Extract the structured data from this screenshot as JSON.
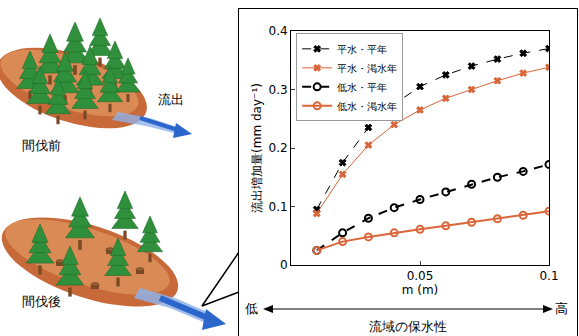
{
  "chart_data": {
    "type": "line",
    "x_label": "m (m)",
    "y_label": "流出増加量(mm day⁻¹)",
    "x": [
      0.01,
      0.02,
      0.03,
      0.04,
      0.05,
      0.06,
      0.07,
      0.08,
      0.09,
      0.1
    ],
    "series": [
      {
        "name": "平水・平年",
        "color": "#000000",
        "marker": "x",
        "line_style": "dash",
        "values": [
          0.095,
          0.175,
          0.235,
          0.275,
          0.305,
          0.325,
          0.34,
          0.352,
          0.362,
          0.37
        ]
      },
      {
        "name": "平水・渇水年",
        "color": "#d9663a",
        "marker": "x",
        "line_style": "solid",
        "values": [
          0.088,
          0.155,
          0.205,
          0.24,
          0.265,
          0.285,
          0.3,
          0.315,
          0.328,
          0.338
        ]
      },
      {
        "name": "低水・平年",
        "color": "#000000",
        "marker": "circle-open",
        "line_style": "dash",
        "values": [
          0.025,
          0.055,
          0.08,
          0.098,
          0.112,
          0.125,
          0.138,
          0.15,
          0.16,
          0.172
        ]
      },
      {
        "name": "低水・渇水年",
        "color": "#d9663a",
        "marker": "circle-open",
        "line_style": "solid",
        "values": [
          0.025,
          0.04,
          0.048,
          0.055,
          0.061,
          0.067,
          0.073,
          0.079,
          0.085,
          0.092
        ]
      }
    ],
    "xlim": [
      0,
      0.1
    ],
    "ylim": [
      0,
      0.4
    ],
    "xticks": [
      0.05,
      0.1
    ],
    "yticks": [
      0,
      0.1,
      0.2,
      0.3,
      0.4
    ],
    "grid": false,
    "legend": "upper left",
    "annotations": [
      "低",
      "流域の保水性",
      "高"
    ]
  },
  "illustration": {
    "before": "間伐前",
    "flow": "流出",
    "after": "間伐後"
  }
}
